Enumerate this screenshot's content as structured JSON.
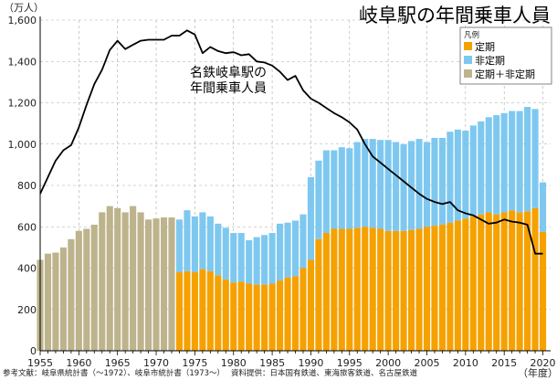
{
  "chart_data": {
    "type": "bar",
    "title": "岐阜駅の年間乗車人員",
    "ylabel": "（万人）",
    "xlabel": "（年度）",
    "ylim": [
      0,
      1600
    ],
    "xlim": [
      1955,
      2021
    ],
    "y_ticks": [
      "0",
      "200",
      "400",
      "600",
      "800",
      "1,000",
      "1,200",
      "1,400",
      "1,600"
    ],
    "x_ticks": [
      "1955",
      "1960",
      "1965",
      "1970",
      "1975",
      "1980",
      "1985",
      "1990",
      "1995",
      "2000",
      "2005",
      "2010",
      "2015",
      "2020"
    ],
    "grid": true,
    "colors": {
      "teiki": "#f5a100",
      "hiteiki": "#7ec8f0",
      "total_only": "#bdb38c",
      "line": "#000000"
    },
    "legend": {
      "title": "凡例",
      "placement": "top-right",
      "items": [
        "定期",
        "非定期",
        "定期＋非定期"
      ]
    },
    "annotation": [
      "名鉄岐阜駅の",
      "年間乗車人員"
    ],
    "line_series": {
      "name": "名鉄岐阜駅の年間乗車人員",
      "x": [
        1955,
        1956,
        1957,
        1958,
        1959,
        1960,
        1961,
        1962,
        1963,
        1964,
        1965,
        1966,
        1967,
        1968,
        1969,
        1970,
        1971,
        1972,
        1973,
        1974,
        1975,
        1976,
        1977,
        1978,
        1979,
        1980,
        1981,
        1982,
        1983,
        1984,
        1985,
        1986,
        1987,
        1988,
        1989,
        1990,
        1991,
        1992,
        1993,
        1994,
        1995,
        1996,
        1997,
        1998,
        1999,
        2000,
        2001,
        2002,
        2003,
        2004,
        2005,
        2006,
        2007,
        2008,
        2009,
        2010,
        2011,
        2012,
        2013,
        2014,
        2015,
        2016,
        2017,
        2018,
        2019,
        2020
      ],
      "values": [
        760,
        840,
        920,
        970,
        995,
        1080,
        1190,
        1290,
        1360,
        1455,
        1500,
        1460,
        1480,
        1500,
        1505,
        1505,
        1505,
        1525,
        1525,
        1550,
        1530,
        1440,
        1470,
        1450,
        1440,
        1445,
        1430,
        1435,
        1400,
        1395,
        1380,
        1350,
        1310,
        1330,
        1260,
        1220,
        1200,
        1175,
        1150,
        1130,
        1105,
        1070,
        1000,
        940,
        910,
        880,
        850,
        820,
        790,
        760,
        735,
        720,
        710,
        720,
        680,
        665,
        655,
        635,
        615,
        620,
        635,
        625,
        620,
        610,
        470,
        470
      ]
    },
    "total_only_series": {
      "name": "定期＋非定期",
      "x": [
        1955,
        1956,
        1957,
        1958,
        1959,
        1960,
        1961,
        1962,
        1963,
        1964,
        1965,
        1966,
        1967,
        1968,
        1969,
        1970,
        1971,
        1972
      ],
      "values": [
        440,
        470,
        475,
        500,
        540,
        580,
        590,
        610,
        670,
        700,
        690,
        670,
        700,
        670,
        635,
        640,
        645,
        645
      ]
    },
    "stacked_series": {
      "x": [
        1973,
        1974,
        1975,
        1976,
        1977,
        1978,
        1979,
        1980,
        1981,
        1982,
        1983,
        1984,
        1985,
        1986,
        1987,
        1988,
        1989,
        1990,
        1991,
        1992,
        1993,
        1994,
        1995,
        1996,
        1997,
        1998,
        1999,
        2000,
        2001,
        2002,
        2003,
        2004,
        2005,
        2006,
        2007,
        2008,
        2009,
        2010,
        2011,
        2012,
        2013,
        2014,
        2015,
        2016,
        2017,
        2018,
        2019,
        2020
      ],
      "series": [
        {
          "name": "定期",
          "values": [
            380,
            385,
            380,
            395,
            385,
            365,
            345,
            330,
            335,
            325,
            320,
            320,
            325,
            340,
            355,
            360,
            400,
            440,
            540,
            570,
            590,
            590,
            590,
            595,
            600,
            595,
            590,
            580,
            580,
            580,
            585,
            590,
            600,
            605,
            610,
            620,
            630,
            640,
            650,
            660,
            670,
            660,
            670,
            680,
            670,
            675,
            690,
            575
          ]
        },
        {
          "name": "非定期",
          "values": [
            255,
            295,
            270,
            275,
            265,
            250,
            250,
            240,
            235,
            210,
            230,
            240,
            245,
            275,
            265,
            270,
            260,
            400,
            380,
            400,
            380,
            395,
            390,
            415,
            425,
            430,
            430,
            440,
            430,
            420,
            430,
            435,
            410,
            425,
            420,
            440,
            440,
            425,
            440,
            450,
            460,
            480,
            480,
            480,
            490,
            505,
            480,
            240
          ]
        }
      ]
    }
  },
  "footer": {
    "source": "参考文献：岐阜県統計書（〜1972）、岐阜市統計書（1973〜）　 資料提供：日本国有鉄道、東海旅客鉄道、名古屋鉄道"
  }
}
